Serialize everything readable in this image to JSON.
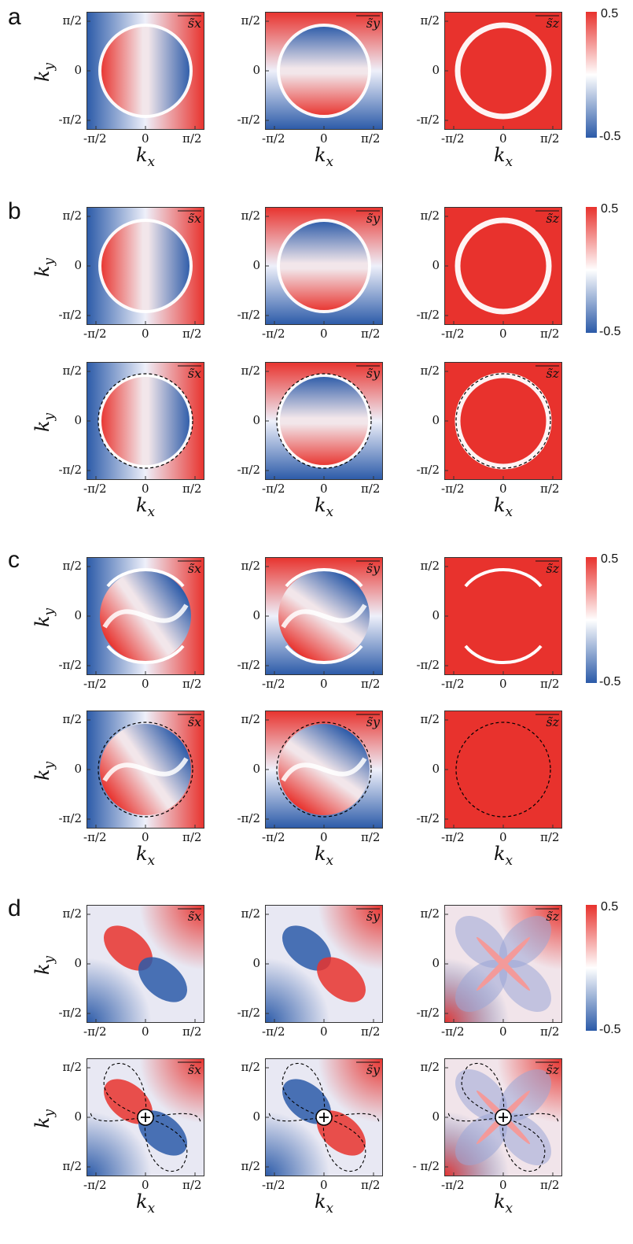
{
  "panels": [
    {
      "letter": "a"
    },
    {
      "letter": "b"
    },
    {
      "letter": "c"
    },
    {
      "letter": "d"
    }
  ],
  "axis": {
    "xlabel": "k",
    "xlabel_sub": "x",
    "ylabel": "k",
    "ylabel_sub": "y",
    "xticks": [
      "-π/2",
      "0",
      "π/2"
    ],
    "yticks": [
      "π/2",
      "0",
      "-π/2"
    ],
    "yticks_d_bottom": [
      "π/2",
      "0",
      "π/2"
    ],
    "yticks_d_bottom_right": [
      "π/2",
      "0",
      "- π/2"
    ]
  },
  "component_labels": [
    "s̃x",
    "s̃y",
    "s̃z"
  ],
  "colorbar": {
    "max_label": "0.5",
    "min_label": "-0.5",
    "range": [
      -0.5,
      0.5
    ],
    "colors": {
      "high": "#e8322d",
      "mid": "#ffffff",
      "low": "#2b5aa8"
    }
  },
  "chart_data": [
    {
      "type": "heatmap",
      "panel": "a",
      "row": "top",
      "components": [
        "sx",
        "sy",
        "sz"
      ],
      "overlay": "none",
      "pattern": "single ring"
    },
    {
      "type": "heatmap",
      "panel": "b",
      "row": "top",
      "components": [
        "sx",
        "sy",
        "sz"
      ],
      "overlay": "none",
      "pattern": "single ring"
    },
    {
      "type": "heatmap",
      "panel": "b",
      "row": "bottom",
      "components": [
        "sx",
        "sy",
        "sz"
      ],
      "overlay": "dashed circle",
      "pattern": "single ring"
    },
    {
      "type": "heatmap",
      "panel": "c",
      "row": "top",
      "components": [
        "sx",
        "sy",
        "sz"
      ],
      "overlay": "none",
      "pattern": "split ring"
    },
    {
      "type": "heatmap",
      "panel": "c",
      "row": "bottom",
      "components": [
        "sx",
        "sy",
        "sz"
      ],
      "overlay": "dashed circle",
      "pattern": "split ring"
    },
    {
      "type": "heatmap",
      "panel": "d",
      "row": "top",
      "components": [
        "sx",
        "sy",
        "sz"
      ],
      "overlay": "none",
      "pattern": "quadrupole"
    },
    {
      "type": "heatmap",
      "panel": "d",
      "row": "bottom",
      "components": [
        "sx",
        "sy",
        "sz"
      ],
      "overlay": "dashed lobes with plus marker",
      "pattern": "quadrupole"
    }
  ]
}
